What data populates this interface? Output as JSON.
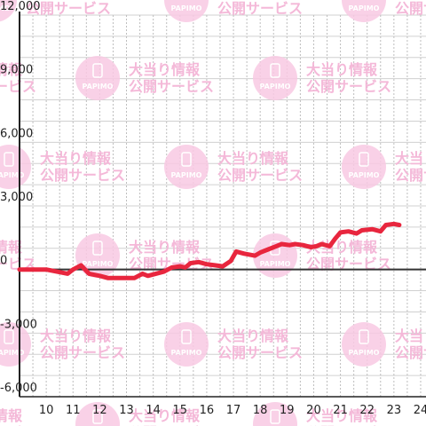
{
  "watermark": {
    "line1": "大当り情報",
    "line2": "公開サービス",
    "logo_text": "PAPIMO",
    "logo_icon": "smartphone-icon",
    "color": "#f9c9e3"
  },
  "chart_data": {
    "type": "line",
    "title": "",
    "xlabel": "",
    "ylabel": "",
    "xlim": [
      9,
      24.2
    ],
    "ylim": [
      -6000,
      12000
    ],
    "x_ticks": [
      10,
      11,
      12,
      13,
      14,
      15,
      16,
      17,
      18,
      19,
      20,
      21,
      22,
      23,
      24
    ],
    "y_ticks": [
      -6000,
      -3000,
      0,
      3000,
      6000,
      9000,
      12000
    ],
    "y_tick_labels": [
      "-6,000",
      "-3,000",
      "0",
      "3,000",
      "6,000",
      "9,000",
      "12,000"
    ],
    "grid": true,
    "line_color": "#e8263e",
    "series": [
      {
        "x": [
          9.0,
          10.0,
          10.4,
          10.8,
          11.0,
          11.3,
          11.6,
          12.0,
          12.3,
          12.8,
          13.3,
          13.6,
          13.8,
          14.1,
          14.4,
          14.7,
          15.0,
          15.2,
          15.4,
          15.7,
          16.0,
          16.3,
          16.6,
          16.9,
          17.1,
          17.4,
          17.8,
          18.0,
          18.3,
          18.6,
          18.8,
          19.1,
          19.3,
          19.6,
          19.9,
          20.1,
          20.3,
          20.6,
          20.8,
          21.0,
          21.3,
          21.6,
          21.8,
          22.2,
          22.5,
          22.7,
          23.0,
          23.2
        ],
        "y": [
          0,
          0,
          -100,
          -200,
          0,
          200,
          -200,
          -300,
          -400,
          -400,
          -400,
          -200,
          -300,
          -200,
          -100,
          100,
          150,
          100,
          300,
          350,
          250,
          200,
          150,
          400,
          850,
          750,
          650,
          800,
          950,
          1100,
          1200,
          1150,
          1200,
          1150,
          1050,
          1100,
          1200,
          1100,
          1450,
          1750,
          1800,
          1700,
          1850,
          1900,
          1800,
          2100,
          2150,
          2100
        ]
      }
    ]
  }
}
